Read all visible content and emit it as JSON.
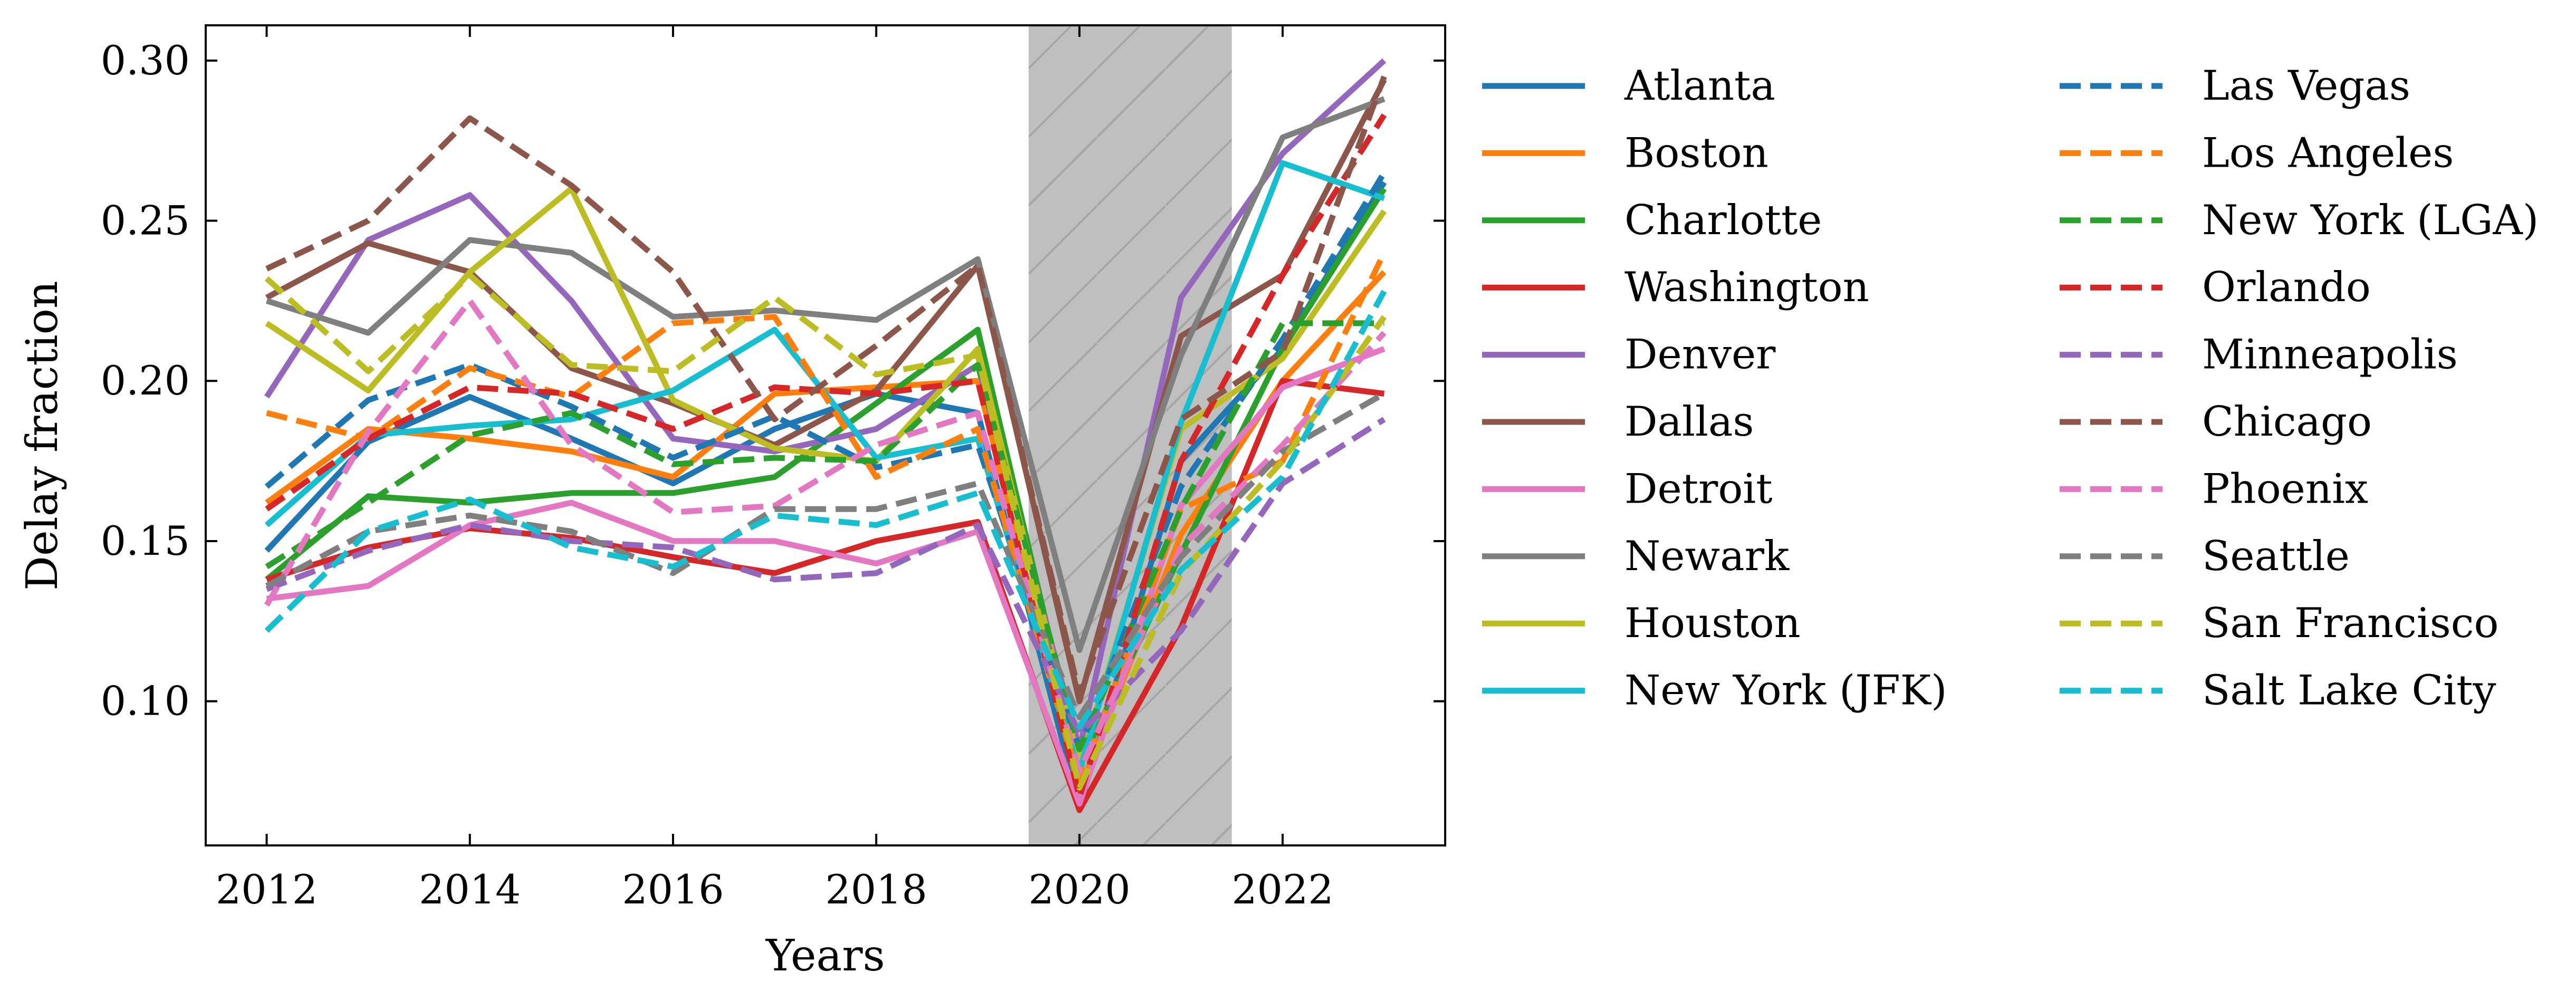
{
  "chart_data": {
    "type": "line",
    "xlabel": "Years",
    "ylabel": "Delay fraction",
    "xlim": [
      2011.4,
      2023.6
    ],
    "ylim": [
      0.055,
      0.311
    ],
    "xticks": [
      2012,
      2014,
      2016,
      2018,
      2020,
      2022
    ],
    "xtick_labels": [
      "2012",
      "2014",
      "2016",
      "2018",
      "2020",
      "2022"
    ],
    "yticks": [
      0.1,
      0.15,
      0.2,
      0.25,
      0.3
    ],
    "ytick_labels": [
      "0.10",
      "0.15",
      "0.20",
      "0.25",
      "0.30"
    ],
    "grid": false,
    "legend_position": "outside-right",
    "shaded_region": {
      "x_start": 2019.5,
      "x_end": 2021.5,
      "fill": "#bfbfbf",
      "hatch": "diagonal"
    },
    "x": [
      2012,
      2013,
      2014,
      2015,
      2016,
      2017,
      2018,
      2019,
      2020,
      2021,
      2022,
      2023
    ],
    "series": [
      {
        "name": "Atlanta",
        "color": "#1f77b4",
        "dash": "solid",
        "values": [
          0.147,
          0.181,
          0.195,
          0.182,
          0.168,
          0.185,
          0.196,
          0.19,
          0.067,
          0.175,
          0.21,
          0.262
        ]
      },
      {
        "name": "Boston",
        "color": "#ff7f0e",
        "dash": "solid",
        "values": [
          0.162,
          0.185,
          0.182,
          0.178,
          0.17,
          0.196,
          0.198,
          0.2,
          0.072,
          0.152,
          0.2,
          0.234
        ]
      },
      {
        "name": "Charlotte",
        "color": "#2ca02c",
        "dash": "solid",
        "values": [
          0.138,
          0.164,
          0.162,
          0.165,
          0.165,
          0.17,
          0.193,
          0.216,
          0.08,
          0.146,
          0.21,
          0.26
        ]
      },
      {
        "name": "Washington",
        "color": "#d62728",
        "dash": "solid",
        "values": [
          0.138,
          0.148,
          0.154,
          0.151,
          0.145,
          0.14,
          0.15,
          0.156,
          0.066,
          0.123,
          0.2,
          0.196
        ]
      },
      {
        "name": "Denver",
        "color": "#9467bd",
        "dash": "solid",
        "values": [
          0.195,
          0.244,
          0.258,
          0.225,
          0.182,
          0.178,
          0.185,
          0.205,
          0.085,
          0.226,
          0.271,
          0.3
        ]
      },
      {
        "name": "Dallas",
        "color": "#8c564b",
        "dash": "solid",
        "values": [
          0.226,
          0.243,
          0.234,
          0.204,
          0.193,
          0.18,
          0.197,
          0.236,
          0.1,
          0.214,
          0.233,
          0.294
        ]
      },
      {
        "name": "Detroit",
        "color": "#e377c2",
        "dash": "solid",
        "values": [
          0.132,
          0.136,
          0.155,
          0.162,
          0.15,
          0.15,
          0.143,
          0.153,
          0.068,
          0.161,
          0.198,
          0.21
        ]
      },
      {
        "name": "Newark",
        "color": "#7f7f7f",
        "dash": "solid",
        "values": [
          0.225,
          0.215,
          0.244,
          0.24,
          0.22,
          0.222,
          0.219,
          0.238,
          0.116,
          0.208,
          0.276,
          0.288
        ]
      },
      {
        "name": "Houston",
        "color": "#bcbd22",
        "dash": "solid",
        "values": [
          0.218,
          0.197,
          0.234,
          0.26,
          0.194,
          0.179,
          0.175,
          0.21,
          0.08,
          0.185,
          0.207,
          0.253
        ]
      },
      {
        "name": "New York (JFK)",
        "color": "#17becf",
        "dash": "solid",
        "values": [
          0.155,
          0.183,
          0.186,
          0.188,
          0.197,
          0.216,
          0.176,
          0.182,
          0.078,
          0.187,
          0.268,
          0.257
        ]
      },
      {
        "name": "Las Vegas",
        "color": "#1f77b4",
        "dash": "dashed",
        "values": [
          0.167,
          0.194,
          0.205,
          0.192,
          0.176,
          0.189,
          0.173,
          0.18,
          0.085,
          0.167,
          0.213,
          0.265
        ]
      },
      {
        "name": "Los Angeles",
        "color": "#ff7f0e",
        "dash": "dashed",
        "values": [
          0.19,
          0.182,
          0.204,
          0.195,
          0.218,
          0.22,
          0.17,
          0.185,
          0.075,
          0.16,
          0.175,
          0.24
        ]
      },
      {
        "name": "New York (LGA)",
        "color": "#2ca02c",
        "dash": "dashed",
        "values": [
          0.142,
          0.162,
          0.183,
          0.19,
          0.174,
          0.176,
          0.175,
          0.205,
          0.085,
          0.16,
          0.218,
          0.218
        ]
      },
      {
        "name": "Orlando",
        "color": "#d62728",
        "dash": "dashed",
        "values": [
          0.16,
          0.182,
          0.198,
          0.196,
          0.185,
          0.198,
          0.196,
          0.2,
          0.07,
          0.175,
          0.233,
          0.283
        ]
      },
      {
        "name": "Minneapolis",
        "color": "#9467bd",
        "dash": "dashed",
        "values": [
          0.135,
          0.147,
          0.155,
          0.15,
          0.148,
          0.138,
          0.14,
          0.155,
          0.09,
          0.122,
          0.168,
          0.188
        ]
      },
      {
        "name": "Chicago",
        "color": "#8c564b",
        "dash": "dashed",
        "values": [
          0.235,
          0.25,
          0.282,
          0.261,
          0.234,
          0.188,
          0.211,
          0.236,
          0.102,
          0.188,
          0.209,
          0.295
        ]
      },
      {
        "name": "Phoenix",
        "color": "#e377c2",
        "dash": "dashed",
        "values": [
          0.13,
          0.184,
          0.225,
          0.18,
          0.159,
          0.161,
          0.18,
          0.19,
          0.078,
          0.148,
          0.18,
          0.215
        ]
      },
      {
        "name": "Seattle",
        "color": "#7f7f7f",
        "dash": "dashed",
        "values": [
          0.136,
          0.153,
          0.158,
          0.153,
          0.14,
          0.16,
          0.16,
          0.168,
          0.095,
          0.145,
          0.178,
          0.196
        ]
      },
      {
        "name": "San Francisco",
        "color": "#bcbd22",
        "dash": "dashed",
        "values": [
          0.232,
          0.203,
          0.233,
          0.205,
          0.203,
          0.226,
          0.202,
          0.208,
          0.073,
          0.14,
          0.175,
          0.22
        ]
      },
      {
        "name": "Salt Lake City",
        "color": "#17becf",
        "dash": "dashed",
        "values": [
          0.122,
          0.153,
          0.163,
          0.148,
          0.142,
          0.158,
          0.155,
          0.165,
          0.092,
          0.141,
          0.17,
          0.228
        ]
      }
    ]
  }
}
